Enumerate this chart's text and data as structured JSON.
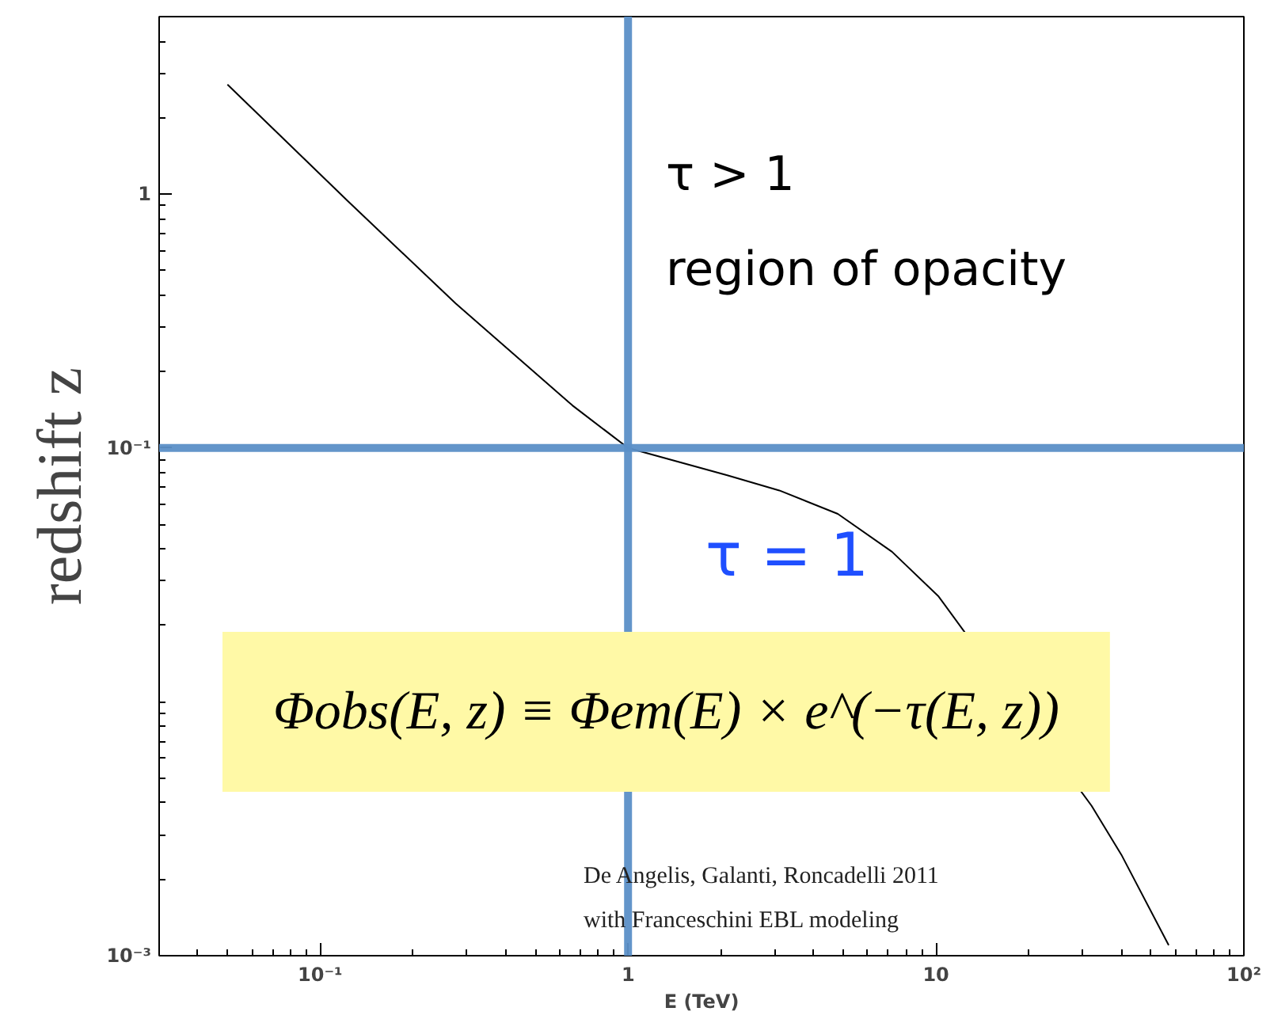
{
  "chart_data": {
    "type": "line",
    "xlabel": "E (TeV)",
    "ylabel": "redshift z",
    "log": "xy",
    "grid": false,
    "marker": "none",
    "line_style": "solid",
    "xlim": [
      0.03,
      100
    ],
    "ylim": [
      0.001,
      5
    ],
    "xticks": [
      {
        "value": 0.1,
        "label": "10⁻¹"
      },
      1,
      10,
      {
        "value": 100,
        "label": "10²"
      }
    ],
    "yticks": [
      {
        "value": 0.001,
        "label": "10⁻³"
      },
      {
        "value": 0.1,
        "label": "10⁻¹"
      },
      1
    ],
    "x": [
      0.05,
      0.124,
      0.276,
      0.66,
      1,
      2.1,
      3.1,
      4.8,
      7.2,
      10.2,
      32,
      40,
      57
    ],
    "series": [
      {
        "color": "#000000",
        "values": [
          2.7,
          0.93,
          0.37,
          0.147,
          0.1,
          0.078,
          0.068,
          0.055,
          0.039,
          0.026,
          0.0039,
          0.0025,
          0.0011
        ]
      }
    ],
    "ref_lines": [
      {
        "axis": "x",
        "value": 1,
        "color": "#5b8fc7"
      },
      {
        "axis": "y",
        "value": 0.1,
        "color": "#5b8fc7"
      }
    ],
    "annotations": [
      "τ   > 1",
      "region of opacity",
      "τ = 1",
      "Φobs(E, z) ≡ Φem(E) × e^(−τ(E, z))",
      "De Angelis, Galanti, Roncadelli 2011",
      "with Franceschini EBL modeling"
    ]
  }
}
